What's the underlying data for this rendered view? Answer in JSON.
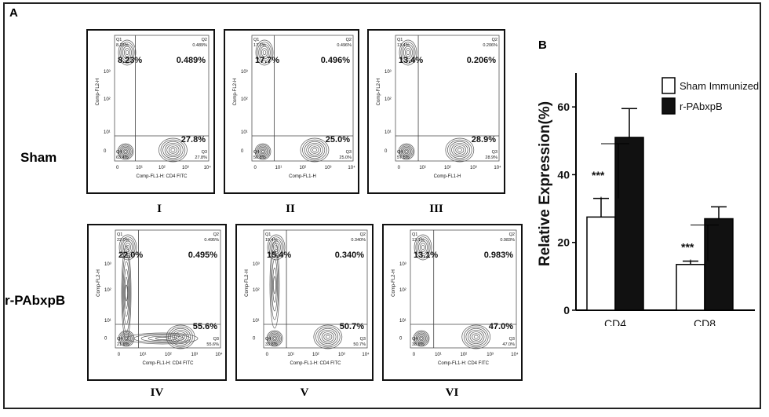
{
  "panel_labels": {
    "a": "A",
    "b": "B"
  },
  "row_labels": {
    "sham": "Sham",
    "rpab": "r-PAbxpB"
  },
  "flow_plots": [
    {
      "id": "I",
      "row": "sham",
      "roman": "I",
      "xlabel": "Comp-FL1-H: CD4 FITC",
      "ylabel": "Comp-FL2-H",
      "q1": "Q1",
      "q2": "Q2",
      "q3": "Q3",
      "q4": "Q4",
      "q1_small": "8.23%",
      "q2_small": "0.489%",
      "q3_small": "27.8%",
      "q4_small": "63.4%",
      "q1_big": "8.23%",
      "q2_big": "0.489%",
      "q3_big": "27.8%"
    },
    {
      "id": "II",
      "row": "sham",
      "roman": "II",
      "xlabel": "Comp-FL1-H",
      "ylabel": "Comp-FL2-H",
      "q1": "Q1",
      "q2": "Q2",
      "q3": "Q3",
      "q4": "Q4",
      "q1_small": "17.7%",
      "q2_small": "0.496%",
      "q3_small": "25.0%",
      "q4_small": "56.8%",
      "q1_big": "17.7%",
      "q2_big": "0.496%",
      "q3_big": "25.0%"
    },
    {
      "id": "III",
      "row": "sham",
      "roman": "III",
      "xlabel": "Comp-FL1-H",
      "ylabel": "Comp-FL2-H",
      "q1": "Q1",
      "q2": "Q2",
      "q3": "Q3",
      "q4": "Q4",
      "q1_small": "13.4%",
      "q2_small": "0.206%",
      "q3_small": "28.9%",
      "q4_small": "57.5%",
      "q1_big": "13.4%",
      "q2_big": "0.206%",
      "q3_big": "28.9%"
    },
    {
      "id": "IV",
      "row": "rpab",
      "roman": "IV",
      "xlabel": "Comp-FL1-H: CD4 FITC",
      "ylabel": "Comp-FL2-H",
      "q1": "Q1",
      "q2": "Q2",
      "q3": "Q3",
      "q4": "Q4",
      "q1_small": "22.0%",
      "q2_small": "0.495%",
      "q3_small": "55.6%",
      "q4_small": "21.9%",
      "q1_big": "22.0%",
      "q2_big": "0.495%",
      "q3_big": "55.6%"
    },
    {
      "id": "V",
      "row": "rpab",
      "roman": "V",
      "xlabel": "Comp-FL1-H: CD4 FITC",
      "ylabel": "Comp-FL2-H",
      "q1": "Q1",
      "q2": "Q2",
      "q3": "Q3",
      "q4": "Q4",
      "q1_small": "15.4%",
      "q2_small": "0.340%",
      "q3_small": "50.7%",
      "q4_small": "33.6%",
      "q1_big": "15.4%",
      "q2_big": "0.340%",
      "q3_big": "50.7%"
    },
    {
      "id": "VI",
      "row": "rpab",
      "roman": "VI",
      "xlabel": "Comp-FL1-H: CD4 FITC",
      "ylabel": "Comp-FL2-H",
      "q1": "Q1",
      "q2": "Q2",
      "q3": "Q3",
      "q4": "Q4",
      "q1_small": "13.1%",
      "q2_small": "0.983%",
      "q3_small": "47.0%",
      "q4_small": "38.9%",
      "q1_big": "13.1%",
      "q2_big": "0.983%",
      "q3_big": "47.0%"
    }
  ],
  "chart_data": {
    "type": "bar",
    "categories": [
      "CD4",
      "CD8"
    ],
    "series": [
      {
        "name": "Sham Immunized",
        "values": [
          27.5,
          13.5
        ],
        "errors": [
          5.5,
          1.0
        ],
        "color": "#ffffff"
      },
      {
        "name": "r-PAbxpB",
        "values": [
          51,
          27
        ],
        "errors": [
          8.5,
          3.5
        ],
        "color": "#111111"
      }
    ],
    "ylabel": "Relative Expression(%)",
    "ylim": [
      0,
      70
    ],
    "yticks": [
      "0",
      "20",
      "40",
      "60"
    ],
    "annotations": [
      "***",
      "***"
    ],
    "legend_position": "top-right",
    "grid": false
  }
}
